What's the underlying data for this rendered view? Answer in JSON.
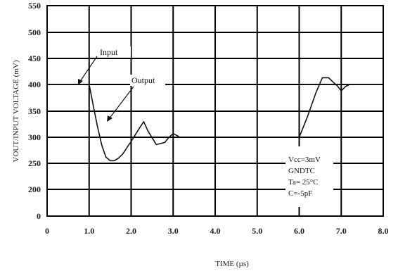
{
  "chart_data": {
    "type": "line",
    "title": "",
    "xlabel": "TIME (µs)",
    "ylabel": "VOUT/INPUT VOLTAGE (mV)",
    "xlim": [
      0,
      8
    ],
    "ylim": [
      0,
      550
    ],
    "x_ticks": [
      "0",
      "1.0",
      "2.0",
      "3.0",
      "4.0",
      "5.0",
      "6.0",
      "7.0",
      "8.0"
    ],
    "y_ticks": [
      "0",
      "200",
      "250",
      "300",
      "350",
      "400",
      "450",
      "500",
      "550"
    ],
    "grid": true,
    "series": [
      {
        "name": "Input",
        "segments": [
          [
            [
              0,
              400
            ],
            [
              1.0,
              400
            ]
          ],
          [
            [
              6.0,
              400
            ],
            [
              8.0,
              400
            ]
          ]
        ]
      },
      {
        "name": "Output",
        "segments": [
          [
            [
              1.0,
              400
            ],
            [
              1.1,
              360
            ],
            [
              1.2,
              320
            ],
            [
              1.3,
              285
            ],
            [
              1.4,
              262
            ],
            [
              1.5,
              255
            ],
            [
              1.6,
              255
            ],
            [
              1.7,
              260
            ],
            [
              1.8,
              268
            ],
            [
              1.9,
              280
            ],
            [
              2.0,
              292
            ],
            [
              2.1,
              305
            ],
            [
              2.2,
              318
            ],
            [
              2.3,
              330
            ],
            [
              2.4,
              312
            ],
            [
              2.6,
              286
            ],
            [
              2.7,
              288
            ],
            [
              2.8,
              290
            ],
            [
              2.9,
              300
            ],
            [
              3.0,
              307
            ],
            [
              3.1,
              303
            ],
            [
              3.15,
              300
            ]
          ],
          [
            [
              6.0,
              300
            ],
            [
              6.2,
              340
            ],
            [
              6.4,
              385
            ],
            [
              6.55,
              413
            ],
            [
              6.7,
              413
            ],
            [
              6.8,
              405
            ],
            [
              6.9,
              398
            ],
            [
              7.0,
              388
            ],
            [
              7.1,
              396
            ],
            [
              7.2,
              400
            ]
          ]
        ]
      }
    ],
    "annotations": {
      "input_label": "Input",
      "output_label": "Output"
    },
    "conditions": [
      "Vcc=3mV",
      "GNDTC",
      "Ta= 25°C",
      "C=-5pF"
    ],
    "colors": {
      "line": "#111111",
      "grid": "#000000",
      "background": "#ffffff"
    }
  }
}
